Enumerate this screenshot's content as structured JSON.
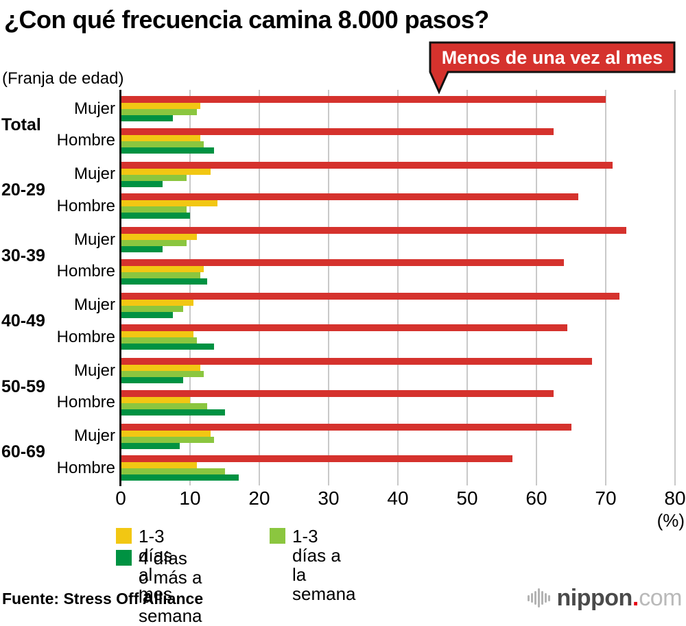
{
  "title": "¿Con qué frecuencia camina 8.000 pasos?",
  "axis_note": "(Franja de edad)",
  "callout": {
    "label": "Menos de una vez al mes",
    "bg_color": "#d5322d",
    "border_color": "#111111",
    "text_color": "#ffffff"
  },
  "legend": {
    "items": [
      {
        "label": "1-3 días al mes",
        "color": "#f2c713"
      },
      {
        "label": "1-3 días a la semana",
        "color": "#8bc63f"
      },
      {
        "label": "4 días o más a la semana",
        "color": "#009242"
      }
    ]
  },
  "footer": {
    "source": "Fuente: Stress Off Alliance",
    "logo": {
      "name": "nippon",
      "dot": ".",
      "tld": "com"
    }
  },
  "chart_data": {
    "type": "bar",
    "orientation": "horizontal",
    "title": "¿Con qué frecuencia camina 8.000 pasos?",
    "xlabel": "(%)",
    "ylabel": "(Franja de edad)",
    "xlim": [
      0,
      80
    ],
    "xticks": [
      0,
      10,
      20,
      30,
      40,
      50,
      60,
      70,
      80
    ],
    "grid": true,
    "series_names": [
      "Menos de una vez al mes",
      "1-3 días al mes",
      "1-3 días a la semana",
      "4 días o más a la semana"
    ],
    "series_colors": [
      "#d5322d",
      "#f2c713",
      "#8bc63f",
      "#009242"
    ],
    "groups": [
      {
        "label": "Total",
        "rows": [
          {
            "label": "Mujer",
            "values": [
              70,
              11.5,
              11,
              7.5
            ]
          },
          {
            "label": "Hombre",
            "values": [
              62.5,
              11.5,
              12,
              13.5
            ]
          }
        ]
      },
      {
        "label": "20-29",
        "rows": [
          {
            "label": "Mujer",
            "values": [
              71,
              13,
              9.5,
              6
            ]
          },
          {
            "label": "Hombre",
            "values": [
              66,
              14,
              9.5,
              10
            ]
          }
        ]
      },
      {
        "label": "30-39",
        "rows": [
          {
            "label": "Mujer",
            "values": [
              73,
              11,
              9.5,
              6
            ]
          },
          {
            "label": "Hombre",
            "values": [
              64,
              12,
              11.5,
              12.5
            ]
          }
        ]
      },
      {
        "label": "40-49",
        "rows": [
          {
            "label": "Mujer",
            "values": [
              72,
              10.5,
              9,
              7.5
            ]
          },
          {
            "label": "Hombre",
            "values": [
              64.5,
              10.5,
              11,
              13.5
            ]
          }
        ]
      },
      {
        "label": "50-59",
        "rows": [
          {
            "label": "Mujer",
            "values": [
              68,
              11.5,
              12,
              9
            ]
          },
          {
            "label": "Hombre",
            "values": [
              62.5,
              10,
              12.5,
              15
            ]
          }
        ]
      },
      {
        "label": "60-69",
        "rows": [
          {
            "label": "Mujer",
            "values": [
              65,
              13,
              13.5,
              8.5
            ]
          },
          {
            "label": "Hombre",
            "values": [
              56.5,
              11,
              15,
              17
            ]
          }
        ]
      }
    ]
  }
}
